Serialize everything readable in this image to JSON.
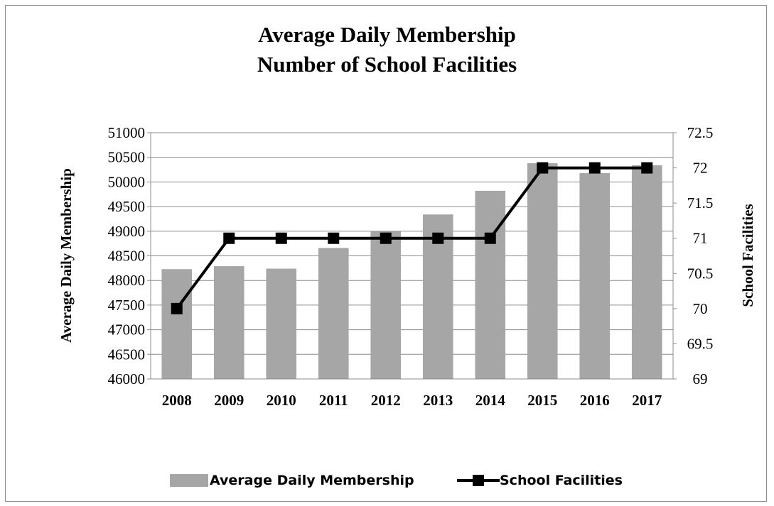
{
  "chart_data": {
    "type": "bar",
    "title_lines": [
      "Average Daily Membership",
      "Number of School Facilities"
    ],
    "categories": [
      "2008",
      "2009",
      "2010",
      "2011",
      "2012",
      "2013",
      "2014",
      "2015",
      "2016",
      "2017"
    ],
    "series": [
      {
        "name": "Average Daily Membership",
        "type": "bar",
        "axis": "left",
        "color": "#a6a6a6",
        "values": [
          48230,
          48290,
          48240,
          48660,
          49000,
          49340,
          49820,
          50380,
          50180,
          50340
        ]
      },
      {
        "name": "School Facilities",
        "type": "line",
        "axis": "right",
        "color": "#000000",
        "marker": "square",
        "values": [
          70,
          71,
          71,
          71,
          71,
          71,
          71,
          72,
          72,
          72
        ]
      }
    ],
    "ylabel": "Average Daily Membership",
    "y2label": "School Facilities",
    "ylim": [
      46000,
      51000
    ],
    "y2lim": [
      69,
      72.5
    ],
    "yticks": [
      "46000",
      "46500",
      "47000",
      "47500",
      "48000",
      "48500",
      "49000",
      "49500",
      "50000",
      "50500",
      "51000"
    ],
    "y2ticks": [
      "69",
      "69.5",
      "70",
      "70.5",
      "71",
      "71.5",
      "72",
      "72.5"
    ],
    "grid": true,
    "legend_position": "bottom"
  }
}
